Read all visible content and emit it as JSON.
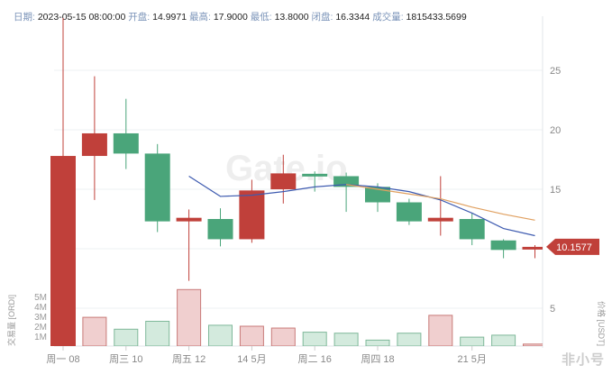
{
  "header": {
    "date_label": "日期:",
    "date": "2023-05-15 08:00:00",
    "open_label": "开盘:",
    "open": "14.9971",
    "high_label": "最高:",
    "high": "17.9000",
    "low_label": "最低:",
    "low": "13.8000",
    "close_label": "闭盘:",
    "close": "16.3344",
    "volume_label": "成交量:",
    "volume": "1815433.5699"
  },
  "watermark": "Gate.io",
  "logo": "非小号",
  "colors": {
    "up": "#c0403a",
    "down": "#4aa57a",
    "up_vol": "#f0cfcf",
    "down_vol": "#d3eadd",
    "ma_short": "#3e5bb0",
    "ma_long": "#e0a060"
  },
  "chart_data": {
    "type": "candlestick",
    "price_axis": {
      "label": "价格 [USDT]",
      "ticks": [
        5,
        10,
        15,
        20,
        25
      ],
      "tick_labels": [
        "5",
        "15",
        "20",
        "25"
      ]
    },
    "volume_axis": {
      "label": "交易量 [ORDI]",
      "tick_labels": [
        "1M",
        "2M",
        "3M",
        "4M",
        "5M"
      ],
      "ticks": [
        1,
        2,
        3,
        4,
        5
      ]
    },
    "x_tick_labels": [
      {
        "i": 0,
        "label": "周一 08"
      },
      {
        "i": 2,
        "label": "周三 10"
      },
      {
        "i": 4,
        "label": "周五 12"
      },
      {
        "i": 6,
        "label": "14 5月"
      },
      {
        "i": 8,
        "label": "周二 16"
      },
      {
        "i": 10,
        "label": "周四 18"
      },
      {
        "i": 13,
        "label": "21 5月"
      }
    ],
    "last_price": "10.1577",
    "candles": [
      {
        "date": "2023-05-08",
        "o": 0.1,
        "h": 29.4,
        "l": 0.1,
        "c": 17.8,
        "v": 7.0
      },
      {
        "date": "2023-05-09",
        "o": 17.8,
        "h": 24.5,
        "l": 14.1,
        "c": 19.7,
        "v": 2.9
      },
      {
        "date": "2023-05-10",
        "o": 19.7,
        "h": 22.6,
        "l": 16.7,
        "c": 18.0,
        "v": 1.7
      },
      {
        "date": "2023-05-11",
        "o": 18.0,
        "h": 18.8,
        "l": 11.4,
        "c": 12.3,
        "v": 2.5
      },
      {
        "date": "2023-05-12",
        "o": 12.3,
        "h": 13.3,
        "l": 7.3,
        "c": 12.6,
        "v": 5.7
      },
      {
        "date": "2023-05-13",
        "o": 12.5,
        "h": 13.4,
        "l": 10.2,
        "c": 10.8,
        "v": 2.1
      },
      {
        "date": "2023-05-14",
        "o": 10.8,
        "h": 15.8,
        "l": 10.5,
        "c": 14.9,
        "v": 2.0
      },
      {
        "date": "2023-05-15",
        "o": 14.9971,
        "h": 17.9,
        "l": 13.8,
        "c": 16.3344,
        "v": 1.8154
      },
      {
        "date": "2023-05-16",
        "o": 16.3,
        "h": 16.5,
        "l": 14.8,
        "c": 16.1,
        "v": 1.4
      },
      {
        "date": "2023-05-17",
        "o": 16.1,
        "h": 16.4,
        "l": 13.1,
        "c": 15.2,
        "v": 1.3
      },
      {
        "date": "2023-05-18",
        "o": 15.2,
        "h": 15.5,
        "l": 13.1,
        "c": 13.9,
        "v": 0.6
      },
      {
        "date": "2023-05-19",
        "o": 13.9,
        "h": 14.2,
        "l": 12.0,
        "c": 12.3,
        "v": 1.3
      },
      {
        "date": "2023-05-20",
        "o": 12.3,
        "h": 16.1,
        "l": 11.1,
        "c": 12.6,
        "v": 3.1
      },
      {
        "date": "2023-05-21",
        "o": 12.5,
        "h": 13.0,
        "l": 10.3,
        "c": 10.8,
        "v": 0.9
      },
      {
        "date": "2023-05-22",
        "o": 10.7,
        "h": 10.8,
        "l": 9.2,
        "c": 9.9,
        "v": 1.1
      },
      {
        "date": "2023-05-23",
        "o": 9.95,
        "h": 10.3,
        "l": 9.2,
        "c": 10.1577,
        "v": 0.2
      }
    ],
    "ma_short": [
      null,
      null,
      null,
      null,
      16.1,
      14.4,
      14.5,
      14.8,
      15.2,
      15.4,
      15.2,
      14.8,
      14.1,
      13.0,
      11.7,
      11.1
    ],
    "ma_long": [
      null,
      null,
      null,
      null,
      null,
      null,
      null,
      null,
      null,
      15.4,
      15.0,
      14.6,
      14.2,
      13.5,
      12.9,
      12.4
    ]
  }
}
